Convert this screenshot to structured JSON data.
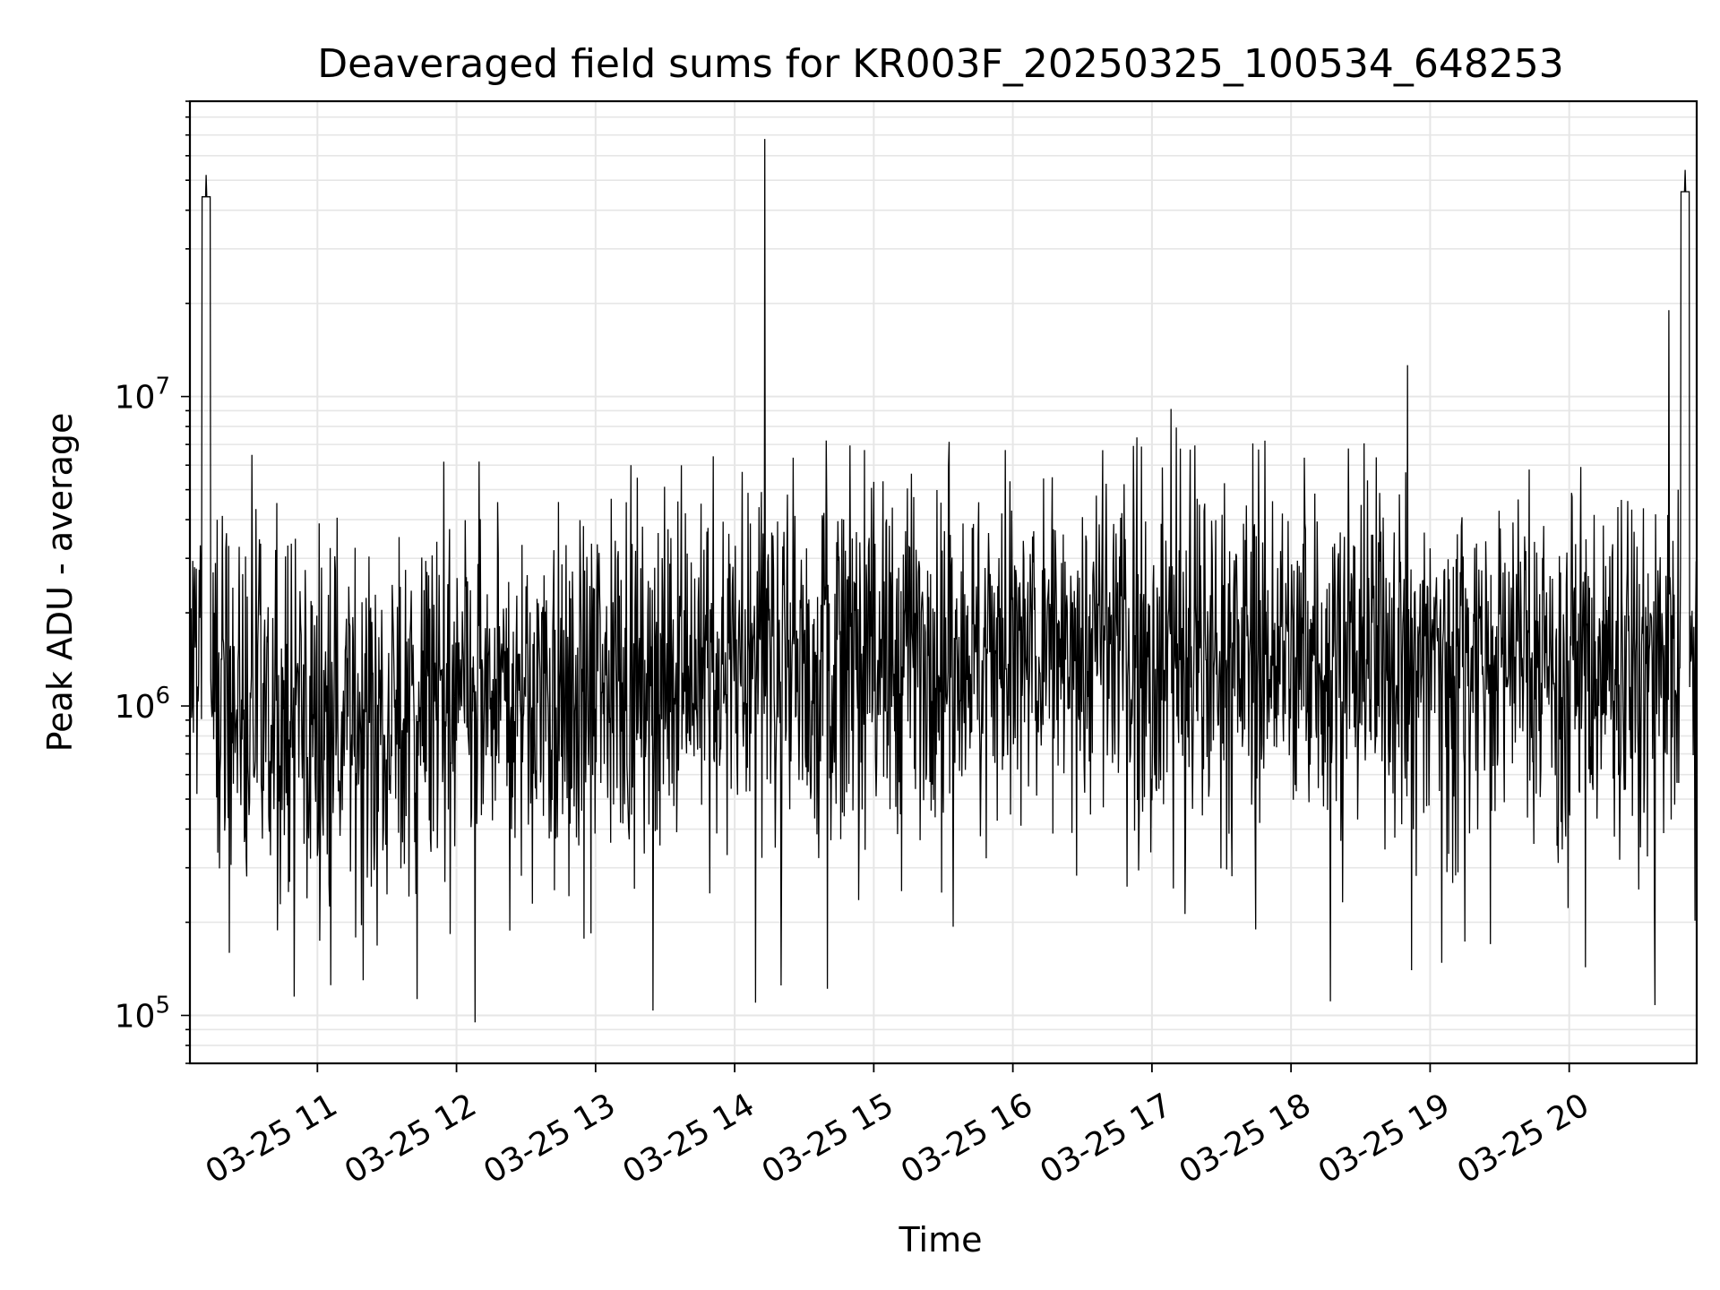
{
  "chart_data": {
    "type": "line",
    "title": "Deaveraged field sums for KR003F_20250325_100534_648253",
    "xlabel": "Time",
    "ylabel": "Peak ADU - average",
    "y_scale": "log",
    "ylim": [
      70000,
      90000000
    ],
    "xlim": [
      "03-25 10:05",
      "03-25 20:55"
    ],
    "grid": true,
    "line_color": "#000000",
    "grid_color": "#e6e6e6",
    "x_ticks": [
      {
        "value": "03-25 11:00",
        "label": "03-25 11"
      },
      {
        "value": "03-25 12:00",
        "label": "03-25 12"
      },
      {
        "value": "03-25 13:00",
        "label": "03-25 13"
      },
      {
        "value": "03-25 14:00",
        "label": "03-25 14"
      },
      {
        "value": "03-25 15:00",
        "label": "03-25 15"
      },
      {
        "value": "03-25 16:00",
        "label": "03-25 16"
      },
      {
        "value": "03-25 17:00",
        "label": "03-25 17"
      },
      {
        "value": "03-25 18:00",
        "label": "03-25 18"
      },
      {
        "value": "03-25 19:00",
        "label": "03-25 19"
      },
      {
        "value": "03-25 20:00",
        "label": "03-25 20"
      }
    ],
    "y_ticks": [
      {
        "value": 100000,
        "base": "10",
        "exp": "5"
      },
      {
        "value": 1000000,
        "base": "10",
        "exp": "6"
      },
      {
        "value": 10000000,
        "base": "10",
        "exp": "7"
      }
    ],
    "series": [
      {
        "color": "#000000",
        "baseline": [
          {
            "x": "03-25 10:05",
            "y": 1300000
          },
          {
            "x": "03-25 10:30",
            "y": 950000
          },
          {
            "x": "03-25 11:00",
            "y": 900000
          },
          {
            "x": "03-25 12:00",
            "y": 1000000
          },
          {
            "x": "03-25 13:00",
            "y": 1250000
          },
          {
            "x": "03-25 14:00",
            "y": 1400000
          },
          {
            "x": "03-25 15:00",
            "y": 1500000
          },
          {
            "x": "03-25 16:00",
            "y": 1550000
          },
          {
            "x": "03-25 17:00",
            "y": 1550000
          },
          {
            "x": "03-25 18:00",
            "y": 1500000
          },
          {
            "x": "03-25 19:00",
            "y": 1450000
          },
          {
            "x": "03-25 20:00",
            "y": 1500000
          },
          {
            "x": "03-25 20:40",
            "y": 1250000
          },
          {
            "x": "03-25 20:55",
            "y": 1100000
          }
        ],
        "peaks": [
          {
            "x": "03-25 10:12",
            "y": 52000000
          },
          {
            "x": "03-25 14:13",
            "y": 68000000
          },
          {
            "x": "03-25 15:00",
            "y": 5300000
          },
          {
            "x": "03-25 20:43",
            "y": 19000000
          },
          {
            "x": "03-25 20:50",
            "y": 54000000
          }
        ],
        "dips": [
          {
            "x": "03-25 10:50",
            "y": 115000
          },
          {
            "x": "03-25 11:43",
            "y": 113000
          },
          {
            "x": "03-25 12:08",
            "y": 95000
          },
          {
            "x": "03-25 14:09",
            "y": 110000
          },
          {
            "x": "03-25 14:20",
            "y": 125000
          },
          {
            "x": "03-25 14:40",
            "y": 122000
          },
          {
            "x": "03-25 18:17",
            "y": 111000
          },
          {
            "x": "03-25 18:52",
            "y": 140000
          },
          {
            "x": "03-25 19:05",
            "y": 148000
          },
          {
            "x": "03-25 19:26",
            "y": 170000
          },
          {
            "x": "03-25 20:07",
            "y": 143000
          }
        ]
      }
    ]
  }
}
